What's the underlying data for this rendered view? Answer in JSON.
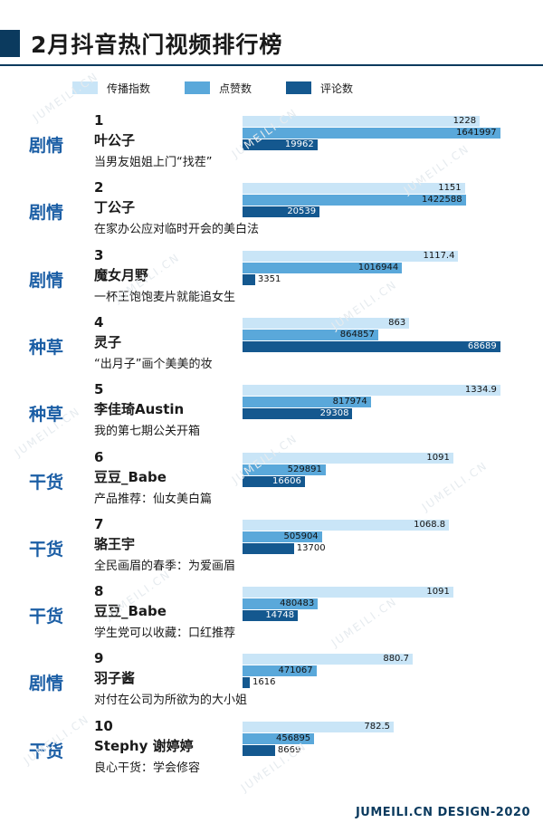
{
  "title": "2月抖音热门视频排行榜",
  "footer": "JUMEILI.CN DESIGN-2020",
  "watermark": "JUMEILI.CN",
  "colors": {
    "dark_blue": "#0b3a5e",
    "category_blue": "#1b5ea5",
    "series_light": "#c9e5f7",
    "series_mid": "#5aa8da",
    "series_dark": "#14588f"
  },
  "legend": [
    {
      "label": "传播指数",
      "color": "#c9e5f7"
    },
    {
      "label": "点赞数",
      "color": "#5aa8da"
    },
    {
      "label": "评论数",
      "color": "#14588f"
    }
  ],
  "chart_data": {
    "type": "bar",
    "series": [
      {
        "name": "传播指数",
        "values": [
          1228,
          1151,
          1117.4,
          863,
          1334.9,
          1091,
          1068.8,
          1091,
          880.7,
          782.5
        ]
      },
      {
        "name": "点赞数",
        "values": [
          1641997,
          1422588,
          1016944,
          864857,
          817974,
          529891,
          505904,
          480483,
          471067,
          456895
        ]
      },
      {
        "name": "评论数",
        "values": [
          19962,
          20539,
          3351,
          68689,
          29308,
          16606,
          13700,
          14748,
          1616,
          8669
        ]
      }
    ],
    "entries": [
      {
        "rank": "1",
        "category": "剧情",
        "name": "叶公子",
        "desc": "当男友姐姐上门“找茬”",
        "spread": "1228",
        "likes": "1641997",
        "comments": "19962"
      },
      {
        "rank": "2",
        "category": "剧情",
        "name": "丁公子",
        "desc": "在家办公应对临时开会的美白法",
        "spread": "1151",
        "likes": "1422588",
        "comments": "20539"
      },
      {
        "rank": "3",
        "category": "剧情",
        "name": "魔女月野",
        "desc": "一杯王饱饱麦片就能追女生",
        "spread": "1117.4",
        "likes": "1016944",
        "comments": "3351"
      },
      {
        "rank": "4",
        "category": "种草",
        "name": "灵子",
        "desc": "“出月子”画个美美的妆",
        "spread": "863",
        "likes": "864857",
        "comments": "68689"
      },
      {
        "rank": "5",
        "category": "种草",
        "name": "李佳琦Austin",
        "desc": "我的第七期公关开箱",
        "spread": "1334.9",
        "likes": "817974",
        "comments": "29308"
      },
      {
        "rank": "6",
        "category": "干货",
        "name": "豆豆_Babe",
        "desc": "产品推荐：仙女美白篇",
        "spread": "1091",
        "likes": "529891",
        "comments": "16606"
      },
      {
        "rank": "7",
        "category": "干货",
        "name": "骆王宇",
        "desc": "全民画眉的春季：为爱画眉",
        "spread": "1068.8",
        "likes": "505904",
        "comments": "13700"
      },
      {
        "rank": "8",
        "category": "干货",
        "name": "豆豆_Babe",
        "desc": "学生党可以收藏：口红推荐",
        "spread": "1091",
        "likes": "480483",
        "comments": "14748"
      },
      {
        "rank": "9",
        "category": "剧情",
        "name": "羽子酱",
        "desc": "对付在公司为所欲为的大小姐",
        "spread": "880.7",
        "likes": "471067",
        "comments": "1616"
      },
      {
        "rank": "10",
        "category": "干货",
        "name": "Stephy 谢婷婷",
        "desc": "良心干货：学会修容",
        "spread": "782.5",
        "likes": "456895",
        "comments": "8669"
      }
    ]
  }
}
